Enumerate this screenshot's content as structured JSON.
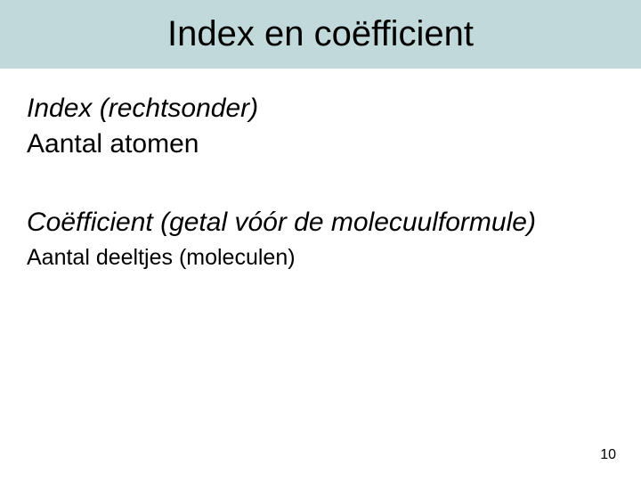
{
  "colors": {
    "title_bg": "#c1d9da",
    "page_bg": "#ffffff",
    "text": "#000000"
  },
  "typography": {
    "title_fontsize": 40,
    "heading_fontsize": 30,
    "body1_fontsize": 30,
    "body2_fontsize": 25,
    "pagenum_fontsize": 16,
    "font_family": "Arial"
  },
  "title": "Index en coëfficient",
  "section1": {
    "heading": "Index (rechtsonder)",
    "body": "Aantal atomen"
  },
  "section2": {
    "heading": "Coëfficient (getal vóór de molecuulformule)",
    "body": "Aantal deeltjes (moleculen)"
  },
  "page_number": "10"
}
